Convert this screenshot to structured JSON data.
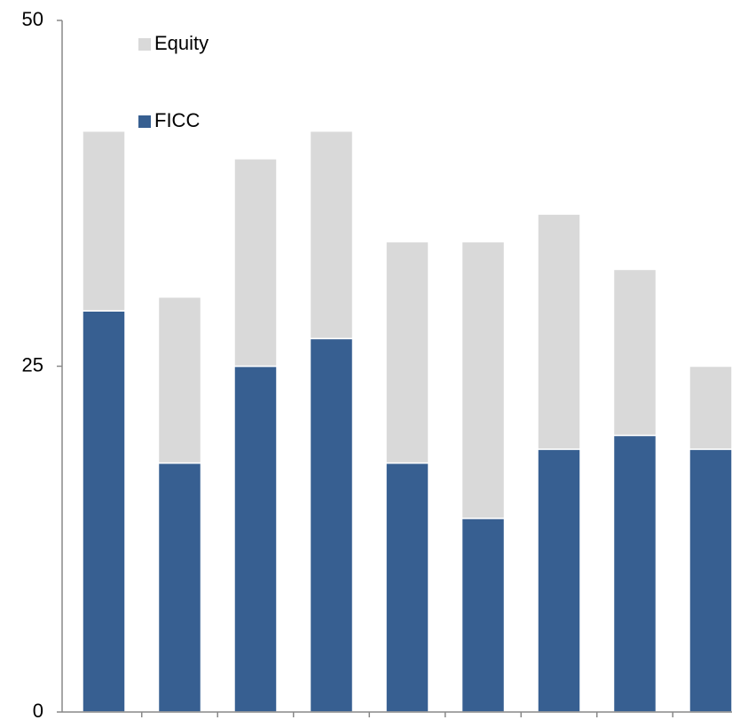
{
  "chart_data": {
    "type": "stacked-bar",
    "categories": [
      null,
      null,
      null,
      null,
      null,
      null,
      null,
      null,
      null
    ],
    "series": [
      {
        "name": "FICC",
        "color": "#375f91",
        "values": [
          29,
          18,
          25,
          27,
          18,
          14,
          19,
          20,
          19
        ]
      },
      {
        "name": "Equity",
        "color": "#d9d9d9",
        "values": [
          13,
          12,
          15,
          15,
          16,
          20,
          17,
          12,
          6
        ]
      }
    ],
    "ylim": [
      0,
      50
    ],
    "yticks": [
      0,
      25,
      50
    ],
    "grid": false,
    "legend": "top-left"
  }
}
